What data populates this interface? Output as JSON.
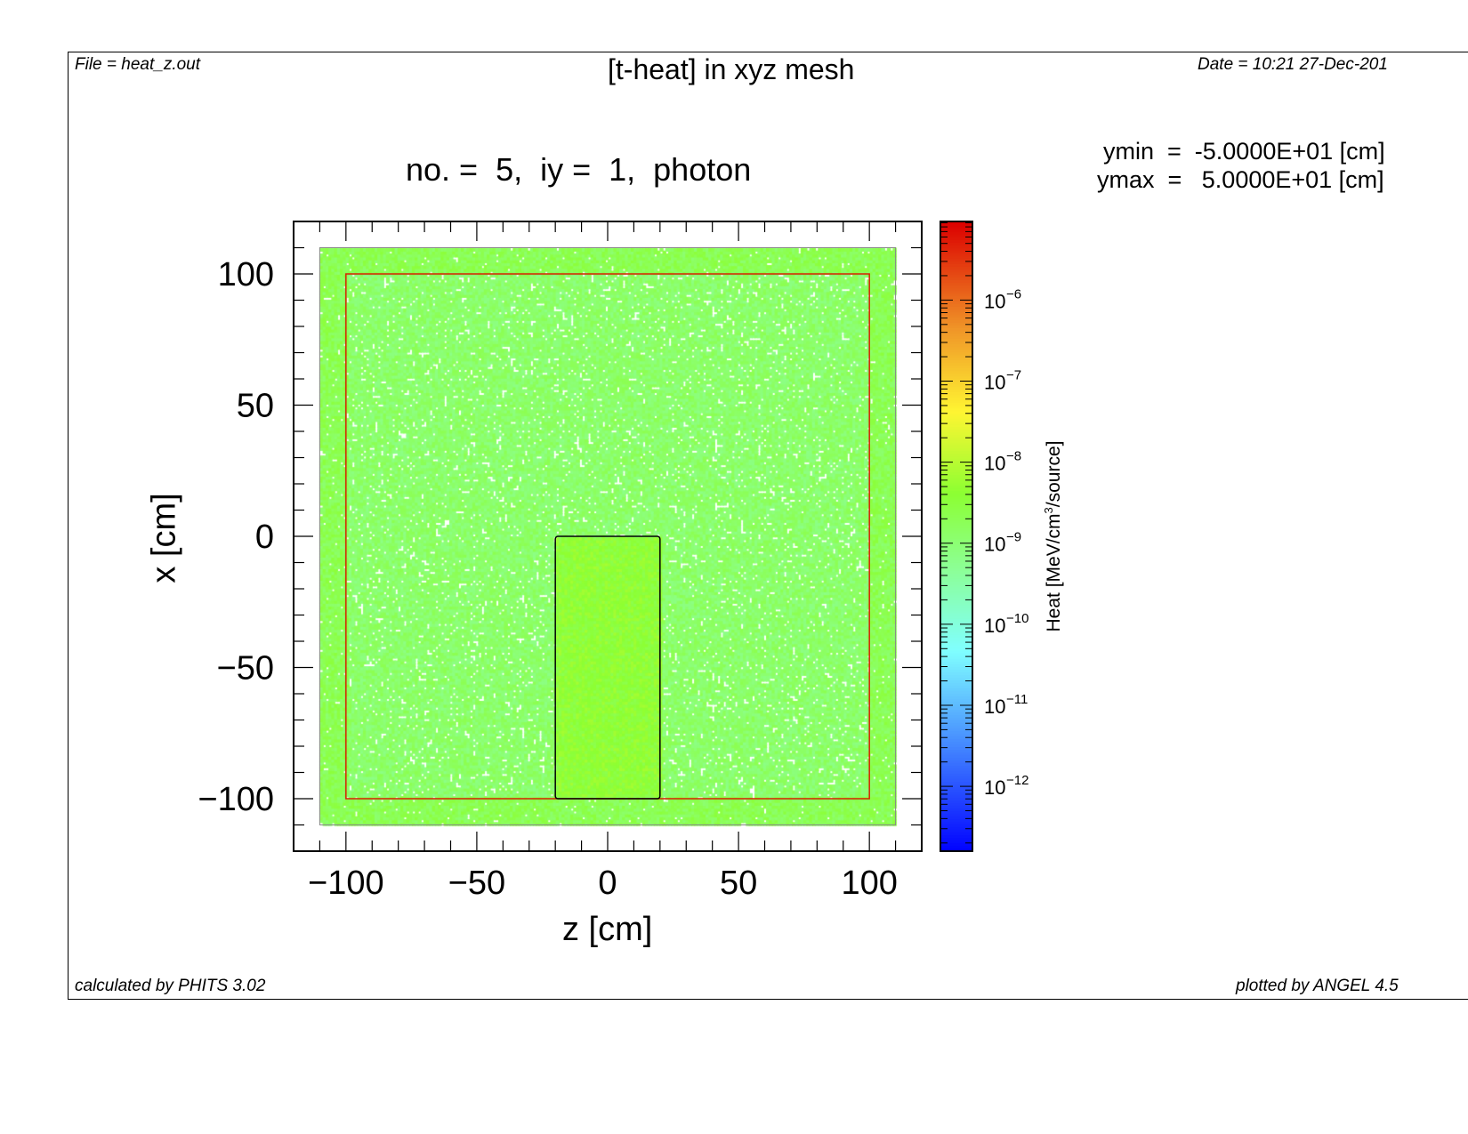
{
  "header": {
    "file": "File = heat_z.out",
    "title": "[t-heat] in xyz mesh",
    "date": "Date = 10:21 27-Dec-201"
  },
  "info": {
    "ymin": "ymin  =  -5.0000E+01 [cm]",
    "ymax": "ymax  =   5.0000E+01 [cm]"
  },
  "footer": {
    "calculated": "calculated by PHITS 3.02",
    "plotted": "plotted by ANGEL 4.5"
  },
  "chart_data": {
    "type": "heatmap",
    "title": "no. =  5,  iy =  1,  photon",
    "xlabel": "z [cm]",
    "ylabel": "x [cm]",
    "xlim": [
      -120,
      120
    ],
    "ylim": [
      -120,
      120
    ],
    "mesh_range": {
      "z": [
        -110,
        110
      ],
      "x": [
        -110,
        110
      ]
    },
    "xticks": [
      {
        "v": -100,
        "label": "−100"
      },
      {
        "v": -50,
        "label": "−50"
      },
      {
        "v": 0,
        "label": "0"
      },
      {
        "v": 50,
        "label": "50"
      },
      {
        "v": 100,
        "label": "100"
      }
    ],
    "yticks": [
      {
        "v": 100,
        "label": "100"
      },
      {
        "v": 50,
        "label": "50"
      },
      {
        "v": 0,
        "label": "0"
      },
      {
        "v": -50,
        "label": "−50"
      },
      {
        "v": -100,
        "label": "−100"
      }
    ],
    "regions": [
      {
        "name": "outer-box",
        "z": [
          -100,
          100
        ],
        "x": [
          -100,
          100
        ],
        "outline": "#d62000",
        "typical_log10": -8.9
      },
      {
        "name": "inner-block",
        "z": [
          -20,
          20
        ],
        "x": [
          -100,
          0
        ],
        "outline": "#000000",
        "typical_log10": -8.4
      },
      {
        "name": "border-zone",
        "z": [
          -110,
          110
        ],
        "x": [
          -110,
          110
        ],
        "typical_log10": -8.7
      }
    ],
    "colorbar": {
      "label_main": "Heat [MeV/cm",
      "label_sup": "3",
      "label_tail": "/source]",
      "scale": "log",
      "range_log10": [
        -12.8,
        -5.03
      ],
      "ticks": [
        {
          "exp": -6,
          "base": "10",
          "sup": "−6"
        },
        {
          "exp": -7,
          "base": "10",
          "sup": "−7"
        },
        {
          "exp": -8,
          "base": "10",
          "sup": "−8"
        },
        {
          "exp": -9,
          "base": "10",
          "sup": "−9"
        },
        {
          "exp": -10,
          "base": "10",
          "sup": "−10"
        },
        {
          "exp": -11,
          "base": "10",
          "sup": "−11"
        },
        {
          "exp": -12,
          "base": "10",
          "sup": "−12"
        }
      ]
    }
  }
}
